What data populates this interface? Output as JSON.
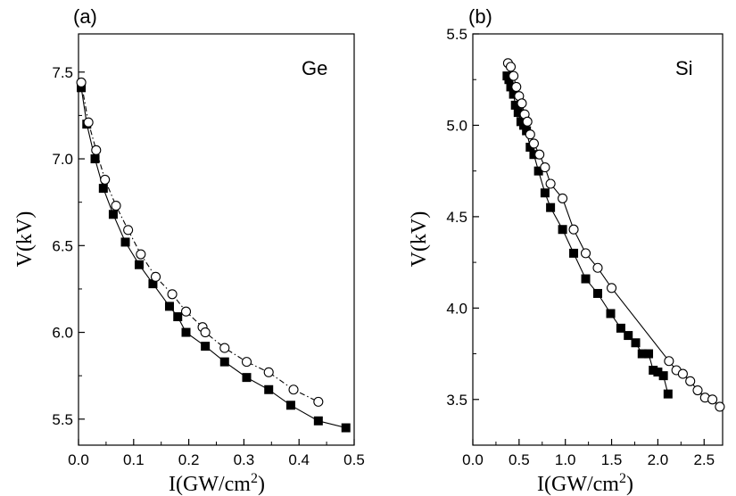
{
  "chart_data": [
    {
      "type": "scatter",
      "panel": "(a)",
      "material": "Ge",
      "xlabel": "I(GW/cm2)",
      "ylabel": "V(kV)",
      "xlim": [
        0.0,
        0.5
      ],
      "ylim": [
        5.35,
        7.72
      ],
      "xticks": [
        0.0,
        0.1,
        0.2,
        0.3,
        0.4,
        0.5
      ],
      "yticks": [
        5.5,
        6.0,
        6.5,
        7.0,
        7.5
      ],
      "xtick_labels": [
        "0.0",
        "0.1",
        "0.2",
        "0.3",
        "0.4",
        "0.5"
      ],
      "ytick_labels": [
        "5.5",
        "6.0",
        "6.5",
        "7.0",
        "7.5"
      ],
      "series": [
        {
          "marker": "filled-square",
          "line": "solid",
          "x": [
            0.005,
            0.015,
            0.03,
            0.045,
            0.063,
            0.085,
            0.11,
            0.135,
            0.165,
            0.18,
            0.195,
            0.23,
            0.265,
            0.305,
            0.345,
            0.385,
            0.435,
            0.485
          ],
          "y": [
            7.41,
            7.2,
            7.0,
            6.83,
            6.68,
            6.52,
            6.39,
            6.28,
            6.15,
            6.09,
            6.0,
            5.92,
            5.83,
            5.74,
            5.67,
            5.58,
            5.49,
            5.45
          ]
        },
        {
          "marker": "open-circle",
          "line": "dash-dot",
          "x": [
            0.005,
            0.018,
            0.032,
            0.048,
            0.068,
            0.09,
            0.113,
            0.14,
            0.17,
            0.195,
            0.225,
            0.23,
            0.265,
            0.305,
            0.345,
            0.39,
            0.435
          ],
          "y": [
            7.44,
            7.21,
            7.05,
            6.88,
            6.73,
            6.59,
            6.45,
            6.32,
            6.22,
            6.12,
            6.03,
            6.0,
            5.91,
            5.83,
            5.77,
            5.67,
            5.6
          ]
        }
      ]
    },
    {
      "type": "scatter",
      "panel": "(b)",
      "material": "Si",
      "xlabel": "I(GW/cm2)",
      "ylabel": "V(kV)",
      "xlim": [
        0.0,
        2.7
      ],
      "ylim": [
        3.25,
        5.5
      ],
      "xticks": [
        0.0,
        0.5,
        1.0,
        1.5,
        2.0,
        2.5
      ],
      "yticks": [
        3.5,
        4.0,
        4.5,
        5.0,
        5.5
      ],
      "xtick_labels": [
        "0.0",
        "0.5",
        "1.0",
        "1.5",
        "2.0",
        "2.5"
      ],
      "ytick_labels": [
        "3.5",
        "4.0",
        "4.5",
        "5.0",
        "5.5"
      ],
      "series": [
        {
          "marker": "filled-square",
          "line": "solid",
          "x": [
            0.37,
            0.39,
            0.41,
            0.44,
            0.46,
            0.49,
            0.52,
            0.55,
            0.58,
            0.62,
            0.66,
            0.71,
            0.78,
            0.84,
            0.97,
            1.09,
            1.22,
            1.35,
            1.49,
            1.6,
            1.68,
            1.76,
            1.83,
            1.9,
            1.95,
            2.0,
            2.06,
            2.11
          ],
          "y": [
            5.27,
            5.25,
            5.21,
            5.17,
            5.11,
            5.07,
            5.02,
            5.0,
            4.97,
            4.88,
            4.84,
            4.75,
            4.63,
            4.55,
            4.43,
            4.3,
            4.16,
            4.08,
            3.97,
            3.89,
            3.85,
            3.81,
            3.75,
            3.75,
            3.66,
            3.65,
            3.63,
            3.53
          ]
        },
        {
          "marker": "open-circle",
          "line": "solid",
          "x": [
            0.38,
            0.41,
            0.44,
            0.47,
            0.5,
            0.53,
            0.56,
            0.59,
            0.62,
            0.66,
            0.72,
            0.78,
            0.84,
            0.97,
            1.09,
            1.22,
            1.35,
            1.5,
            2.12,
            2.2,
            2.27,
            2.35,
            2.43,
            2.51,
            2.59,
            2.67
          ],
          "y": [
            5.34,
            5.32,
            5.27,
            5.21,
            5.16,
            5.12,
            5.06,
            5.02,
            4.95,
            4.9,
            4.84,
            4.77,
            4.68,
            4.6,
            4.43,
            4.3,
            4.22,
            4.11,
            3.71,
            3.66,
            3.64,
            3.6,
            3.55,
            3.51,
            3.5,
            3.46
          ]
        }
      ]
    }
  ]
}
